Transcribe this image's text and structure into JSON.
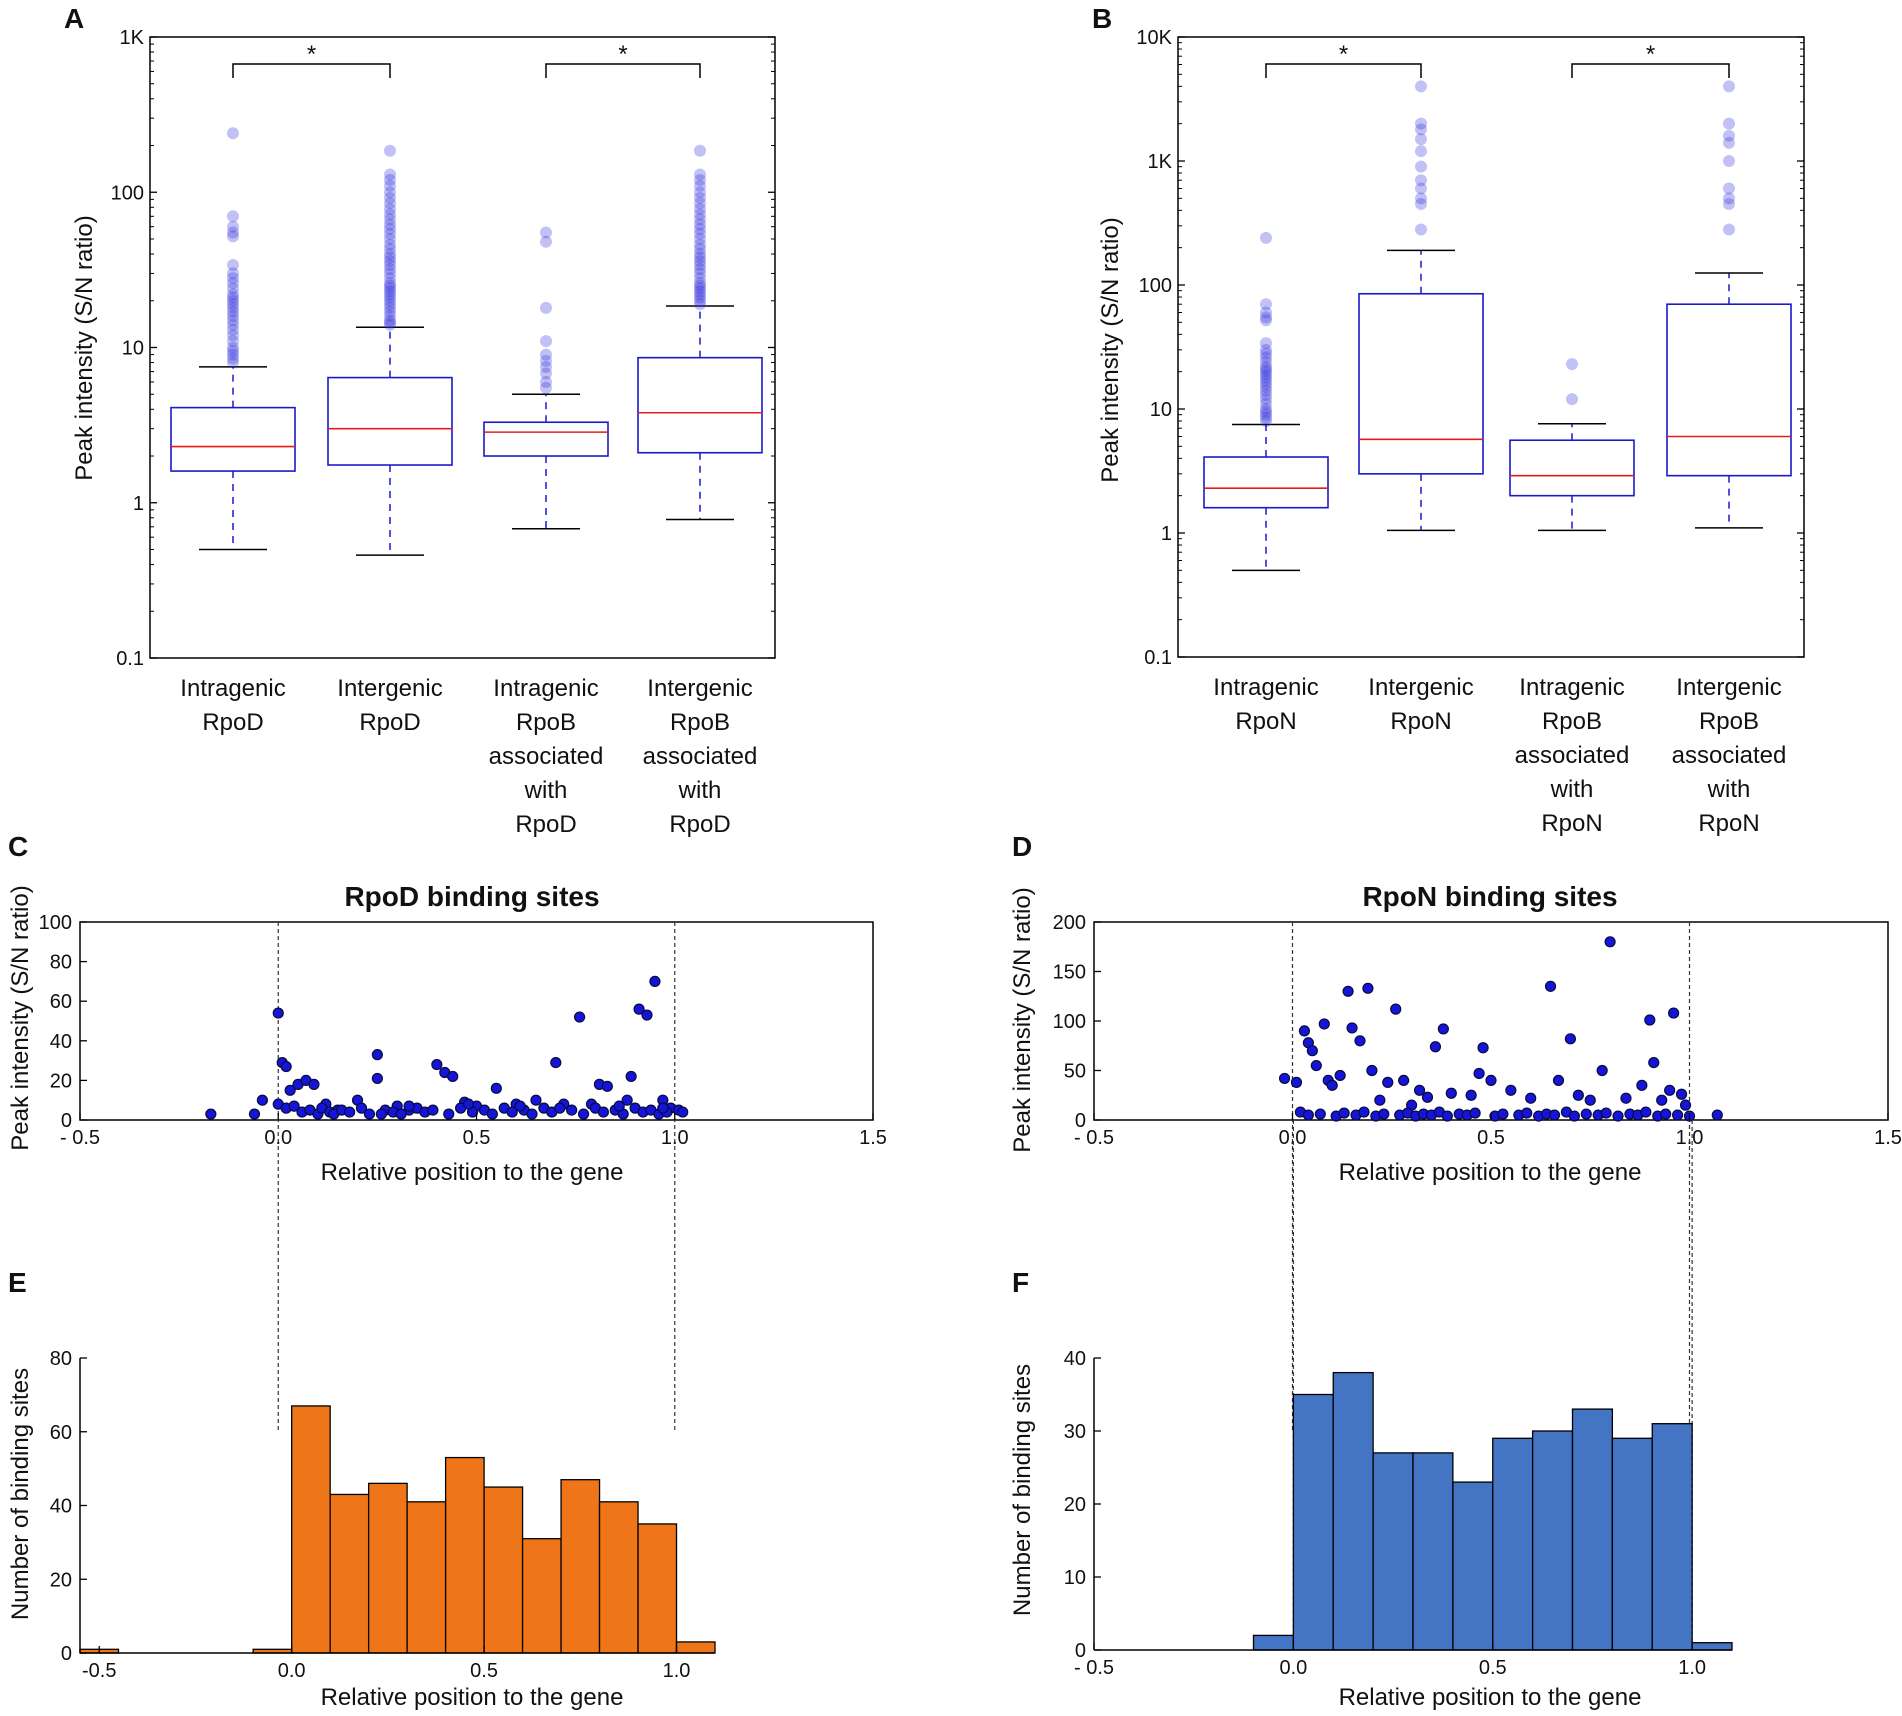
{
  "chart_data": [
    {
      "panel": "A",
      "type": "box",
      "yscale": "log",
      "ylim": [
        0.1,
        1000
      ],
      "yticks": [
        0.1,
        1,
        10,
        100,
        1000
      ],
      "ytick_labels": [
        "0.1",
        "1",
        "10",
        "100",
        "1K"
      ],
      "ylabel": "Peak intensity (S/N ratio)",
      "categories": [
        [
          "Intragenic",
          "RpoD"
        ],
        [
          "Intergenic",
          "RpoD"
        ],
        [
          "Intragenic",
          "RpoB",
          "associated",
          "with",
          "RpoD"
        ],
        [
          "Intergenic",
          "RpoB",
          "associated",
          "with",
          "RpoD"
        ]
      ],
      "boxes": [
        {
          "wlo": 0.5,
          "q1": 1.6,
          "med": 2.3,
          "q3": 4.1,
          "whi": 7.5,
          "outliers": [
            8,
            8.5,
            9,
            9.5,
            10,
            11,
            12,
            13,
            14,
            15,
            16,
            17,
            18,
            19,
            20,
            21,
            22,
            24,
            26,
            28,
            30,
            34,
            52,
            55,
            60,
            70,
            240
          ]
        },
        {
          "wlo": 0.46,
          "q1": 1.75,
          "med": 3.0,
          "q3": 6.4,
          "whi": 13.5,
          "outliers": [
            14,
            14.5,
            15,
            16,
            17,
            18,
            19,
            20,
            21,
            22,
            23,
            24,
            25,
            26,
            28,
            30,
            32,
            34,
            36,
            38,
            40,
            43,
            46,
            50,
            54,
            58,
            62,
            67,
            72,
            78,
            85,
            92,
            100,
            110,
            120,
            130,
            185
          ]
        },
        {
          "wlo": 0.68,
          "q1": 2.0,
          "med": 2.85,
          "q3": 3.3,
          "whi": 5.0,
          "outliers": [
            5.5,
            6,
            6.8,
            7.5,
            8.2,
            9,
            11,
            18,
            48,
            55
          ]
        },
        {
          "wlo": 0.78,
          "q1": 2.1,
          "med": 3.8,
          "q3": 8.6,
          "whi": 18.5,
          "outliers": [
            19,
            20,
            21,
            22,
            23,
            24,
            25,
            26,
            28,
            30,
            32,
            34,
            36,
            38,
            40,
            43,
            46,
            50,
            54,
            58,
            62,
            67,
            72,
            78,
            85,
            92,
            100,
            110,
            120,
            130,
            185
          ]
        }
      ],
      "significance": [
        {
          "pair": [
            1,
            2
          ],
          "label": "*"
        },
        {
          "pair": [
            3,
            4
          ],
          "label": "*"
        }
      ]
    },
    {
      "panel": "B",
      "type": "box",
      "yscale": "log",
      "ylim": [
        0.1,
        10000
      ],
      "yticks": [
        0.1,
        1,
        10,
        100,
        1000,
        10000
      ],
      "ytick_labels": [
        "0.1",
        "1",
        "10",
        "100",
        "1K",
        "10K"
      ],
      "ylabel": "Peak intensity (S/N ratio)",
      "categories": [
        [
          "Intragenic",
          "RpoN"
        ],
        [
          "Intergenic",
          "RpoN"
        ],
        [
          "Intragenic",
          "RpoB",
          "associated",
          "with",
          "RpoN"
        ],
        [
          "Intergenic",
          "RpoB",
          "associated",
          "with",
          "RpoN"
        ]
      ],
      "boxes": [
        {
          "wlo": 0.5,
          "q1": 1.6,
          "med": 2.3,
          "q3": 4.1,
          "whi": 7.5,
          "outliers": [
            8,
            8.5,
            9,
            9.5,
            10,
            11,
            12,
            13,
            14,
            15,
            16,
            17,
            18,
            19,
            20,
            21,
            22,
            24,
            26,
            28,
            30,
            34,
            52,
            55,
            60,
            70,
            240
          ]
        },
        {
          "wlo": 1.05,
          "q1": 3.0,
          "med": 5.7,
          "q3": 85,
          "whi": 190,
          "outliers": [
            280,
            450,
            500,
            600,
            700,
            900,
            1200,
            1500,
            1800,
            2000,
            4000
          ]
        },
        {
          "wlo": 1.05,
          "q1": 2.0,
          "med": 2.9,
          "q3": 5.6,
          "whi": 7.6,
          "outliers": [
            12,
            23
          ]
        },
        {
          "wlo": 1.1,
          "q1": 2.9,
          "med": 6.0,
          "q3": 70,
          "whi": 125,
          "outliers": [
            280,
            450,
            500,
            600,
            1000,
            1400,
            1600,
            2000,
            4000
          ]
        }
      ],
      "significance": [
        {
          "pair": [
            1,
            2
          ],
          "label": "*"
        },
        {
          "pair": [
            3,
            4
          ],
          "label": "*"
        }
      ]
    },
    {
      "panel": "C",
      "type": "scatter",
      "title": "RpoD binding sites",
      "xlabel": "Relative position to the gene",
      "ylabel": "Peak intensity (S/N ratio)",
      "xlim": [
        -0.5,
        1.5
      ],
      "ylim": [
        0,
        100
      ],
      "xticks": [
        -0.5,
        0,
        0.5,
        1,
        1.5
      ],
      "xtick_labels": [
        "- 0.5",
        "0.0",
        "0.5",
        "1.0",
        "1.5"
      ],
      "yticks": [
        0,
        20,
        40,
        60,
        80,
        100
      ],
      "ytick_labels": [
        "0",
        "20",
        "40",
        "60",
        "80",
        "100"
      ],
      "vlines": [
        0,
        1
      ],
      "points": [
        [
          -0.17,
          3
        ],
        [
          -0.06,
          3
        ],
        [
          -0.04,
          10
        ],
        [
          0.0,
          54
        ],
        [
          0.01,
          29
        ],
        [
          0.02,
          27
        ],
        [
          0.03,
          15
        ],
        [
          0.05,
          18
        ],
        [
          0.07,
          20
        ],
        [
          0.09,
          18
        ],
        [
          0.12,
          8
        ],
        [
          0.15,
          5
        ],
        [
          0.2,
          10
        ],
        [
          0.25,
          33
        ],
        [
          0.25,
          21
        ],
        [
          0.3,
          7
        ],
        [
          0.33,
          5
        ],
        [
          0.4,
          28
        ],
        [
          0.42,
          24
        ],
        [
          0.44,
          22
        ],
        [
          0.47,
          9
        ],
        [
          0.5,
          7
        ],
        [
          0.55,
          16
        ],
        [
          0.6,
          8
        ],
        [
          0.65,
          10
        ],
        [
          0.7,
          29
        ],
        [
          0.72,
          8
        ],
        [
          0.76,
          52
        ],
        [
          0.79,
          8
        ],
        [
          0.81,
          18
        ],
        [
          0.83,
          17
        ],
        [
          0.88,
          10
        ],
        [
          0.89,
          22
        ],
        [
          0.91,
          56
        ],
        [
          0.93,
          53
        ],
        [
          0.95,
          70
        ],
        [
          0.97,
          10
        ],
        [
          0.99,
          6
        ],
        [
          1.01,
          5
        ],
        [
          1.02,
          4
        ],
        [
          0.0,
          8
        ],
        [
          0.02,
          6
        ],
        [
          0.04,
          7
        ],
        [
          0.06,
          4
        ],
        [
          0.08,
          5
        ],
        [
          0.1,
          3
        ],
        [
          0.11,
          6
        ],
        [
          0.13,
          4
        ],
        [
          0.14,
          3
        ],
        [
          0.16,
          5
        ],
        [
          0.18,
          4
        ],
        [
          0.21,
          6
        ],
        [
          0.23,
          3
        ],
        [
          0.27,
          5
        ],
        [
          0.29,
          4
        ],
        [
          0.31,
          3
        ],
        [
          0.35,
          6
        ],
        [
          0.37,
          4
        ],
        [
          0.39,
          5
        ],
        [
          0.43,
          3
        ],
        [
          0.46,
          6
        ],
        [
          0.49,
          4
        ],
        [
          0.52,
          5
        ],
        [
          0.54,
          3
        ],
        [
          0.57,
          6
        ],
        [
          0.59,
          4
        ],
        [
          0.62,
          5
        ],
        [
          0.64,
          3
        ],
        [
          0.67,
          6
        ],
        [
          0.69,
          4
        ],
        [
          0.74,
          5
        ],
        [
          0.77,
          3
        ],
        [
          0.8,
          6
        ],
        [
          0.82,
          4
        ],
        [
          0.85,
          5
        ],
        [
          0.87,
          3
        ],
        [
          0.9,
          6
        ],
        [
          0.92,
          4
        ],
        [
          0.94,
          5
        ],
        [
          0.96,
          3
        ],
        [
          0.98,
          4
        ],
        [
          0.26,
          3
        ],
        [
          0.33,
          7
        ],
        [
          0.48,
          8
        ],
        [
          0.61,
          7
        ],
        [
          0.71,
          6
        ],
        [
          0.86,
          7
        ],
        [
          0.97,
          6
        ]
      ]
    },
    {
      "panel": "D",
      "type": "scatter",
      "title": "RpoN binding sites",
      "xlabel": "Relative position to the gene",
      "ylabel": "Peak intensity (S/N ratio)",
      "xlim": [
        -0.5,
        1.5
      ],
      "ylim": [
        0,
        200
      ],
      "xticks": [
        -0.5,
        0,
        0.5,
        1,
        1.5
      ],
      "xtick_labels": [
        "- 0.5",
        "0.0",
        "0.5",
        "1.0",
        "1.5"
      ],
      "yticks": [
        0,
        50,
        100,
        150,
        200
      ],
      "ytick_labels": [
        "0",
        "50",
        "100",
        "150",
        "200"
      ],
      "vlines": [
        0,
        1
      ],
      "points": [
        [
          -0.02,
          42
        ],
        [
          0.01,
          38
        ],
        [
          0.03,
          90
        ],
        [
          0.04,
          78
        ],
        [
          0.05,
          70
        ],
        [
          0.06,
          55
        ],
        [
          0.08,
          97
        ],
        [
          0.09,
          40
        ],
        [
          0.1,
          35
        ],
        [
          0.12,
          45
        ],
        [
          0.14,
          130
        ],
        [
          0.15,
          93
        ],
        [
          0.17,
          80
        ],
        [
          0.19,
          133
        ],
        [
          0.2,
          50
        ],
        [
          0.22,
          20
        ],
        [
          0.24,
          38
        ],
        [
          0.26,
          112
        ],
        [
          0.28,
          40
        ],
        [
          0.3,
          15
        ],
        [
          0.32,
          30
        ],
        [
          0.34,
          23
        ],
        [
          0.36,
          74
        ],
        [
          0.38,
          92
        ],
        [
          0.4,
          27
        ],
        [
          0.45,
          25
        ],
        [
          0.47,
          47
        ],
        [
          0.48,
          73
        ],
        [
          0.5,
          40
        ],
        [
          0.55,
          30
        ],
        [
          0.6,
          22
        ],
        [
          0.65,
          135
        ],
        [
          0.67,
          40
        ],
        [
          0.7,
          82
        ],
        [
          0.72,
          25
        ],
        [
          0.75,
          20
        ],
        [
          0.78,
          50
        ],
        [
          0.8,
          180
        ],
        [
          0.84,
          22
        ],
        [
          0.88,
          35
        ],
        [
          0.9,
          101
        ],
        [
          0.91,
          58
        ],
        [
          0.93,
          20
        ],
        [
          0.95,
          30
        ],
        [
          0.96,
          108
        ],
        [
          0.98,
          26
        ],
        [
          0.99,
          15
        ],
        [
          1.07,
          5
        ],
        [
          0.02,
          8
        ],
        [
          0.04,
          5
        ],
        [
          0.07,
          6
        ],
        [
          0.11,
          4
        ],
        [
          0.13,
          7
        ],
        [
          0.16,
          5
        ],
        [
          0.18,
          8
        ],
        [
          0.21,
          4
        ],
        [
          0.23,
          6
        ],
        [
          0.27,
          5
        ],
        [
          0.29,
          7
        ],
        [
          0.31,
          4
        ],
        [
          0.33,
          6
        ],
        [
          0.35,
          5
        ],
        [
          0.37,
          8
        ],
        [
          0.39,
          4
        ],
        [
          0.42,
          6
        ],
        [
          0.44,
          5
        ],
        [
          0.46,
          7
        ],
        [
          0.51,
          4
        ],
        [
          0.53,
          6
        ],
        [
          0.57,
          5
        ],
        [
          0.59,
          7
        ],
        [
          0.62,
          4
        ],
        [
          0.64,
          6
        ],
        [
          0.66,
          5
        ],
        [
          0.69,
          8
        ],
        [
          0.71,
          4
        ],
        [
          0.74,
          6
        ],
        [
          0.77,
          5
        ],
        [
          0.79,
          7
        ],
        [
          0.82,
          4
        ],
        [
          0.85,
          6
        ],
        [
          0.87,
          5
        ],
        [
          0.89,
          8
        ],
        [
          0.92,
          4
        ],
        [
          0.94,
          6
        ],
        [
          0.97,
          5
        ],
        [
          1.0,
          4
        ]
      ]
    },
    {
      "panel": "E",
      "type": "bar",
      "histogram": true,
      "color": "#ee7518",
      "xlabel": "Relative position to the gene",
      "ylabel": "Number of binding sites",
      "xlim": [
        -0.55,
        1.1
      ],
      "ylim": [
        0,
        80
      ],
      "xticks": [
        -0.5,
        0,
        0.5,
        1
      ],
      "xtick_labels": [
        "-0.5",
        "0.0",
        "0.5",
        "1.0"
      ],
      "yticks": [
        0,
        20,
        40,
        60,
        80
      ],
      "ytick_labels": [
        "0",
        "20",
        "40",
        "60",
        "80"
      ],
      "vlines": [
        0,
        1
      ],
      "bins": [
        [
          -0.55,
          -0.45,
          1
        ],
        [
          -0.1,
          0.0,
          1
        ],
        [
          0.0,
          0.1,
          67
        ],
        [
          0.1,
          0.2,
          43
        ],
        [
          0.2,
          0.3,
          46
        ],
        [
          0.3,
          0.4,
          41
        ],
        [
          0.4,
          0.5,
          53
        ],
        [
          0.5,
          0.6,
          45
        ],
        [
          0.6,
          0.7,
          31
        ],
        [
          0.7,
          0.8,
          47
        ],
        [
          0.8,
          0.9,
          41
        ],
        [
          0.9,
          1.0,
          35
        ],
        [
          1.0,
          1.1,
          3
        ]
      ]
    },
    {
      "panel": "F",
      "type": "bar",
      "histogram": true,
      "color": "#4474c4",
      "xlabel": "Relative position to the gene",
      "ylabel": "Number of binding sites",
      "xlim": [
        -0.5,
        1.1
      ],
      "ylim": [
        0,
        40
      ],
      "xticks": [
        -0.5,
        0,
        0.5,
        1
      ],
      "xtick_labels": [
        "- 0.5",
        "0.0",
        "0.5",
        "1.0"
      ],
      "yticks": [
        0,
        10,
        20,
        30,
        40
      ],
      "ytick_labels": [
        "0",
        "10",
        "20",
        "30",
        "40"
      ],
      "vlines": [
        0,
        1
      ],
      "bins": [
        [
          -0.1,
          0.0,
          2
        ],
        [
          0.0,
          0.1,
          35
        ],
        [
          0.1,
          0.2,
          38
        ],
        [
          0.2,
          0.3,
          27
        ],
        [
          0.3,
          0.4,
          27
        ],
        [
          0.4,
          0.5,
          23
        ],
        [
          0.5,
          0.6,
          29
        ],
        [
          0.6,
          0.7,
          30
        ],
        [
          0.7,
          0.8,
          33
        ],
        [
          0.8,
          0.9,
          29
        ],
        [
          0.9,
          1.0,
          31
        ],
        [
          1.0,
          1.1,
          1
        ]
      ]
    }
  ]
}
